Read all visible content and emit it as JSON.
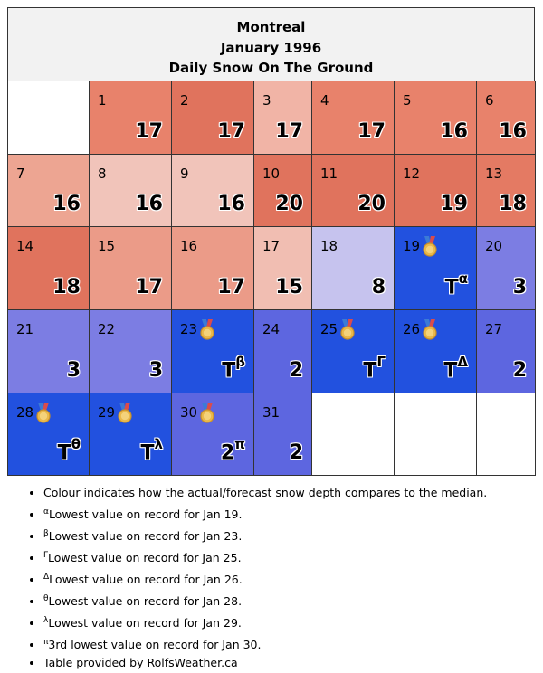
{
  "header": {
    "city": "Montreal",
    "period": "January 1996",
    "subtitle": "Daily Snow On The Ground"
  },
  "colors": {
    "above_median_dark": "#e07a63",
    "above_median": "#e88a72",
    "above_median_light": "#efa893",
    "above_median_lighter": "#f1bcb0",
    "near_median_low": "#c6c3ee",
    "below_median": "#7c7de3",
    "below_median_dark": "#5d66e0",
    "record_low": "#2251df",
    "empty": "#ffffff"
  },
  "icons": {
    "record": "medal-icon"
  },
  "calendar": {
    "weeks": [
      [
        {
          "day": "",
          "value": "",
          "sup": "",
          "color": "#ffffff",
          "medal": false
        },
        {
          "day": "1",
          "value": "17",
          "sup": "",
          "color": "#e8826b",
          "medal": false
        },
        {
          "day": "2",
          "value": "17",
          "sup": "",
          "color": "#e0735d",
          "medal": false
        },
        {
          "day": "3",
          "value": "17",
          "sup": "",
          "color": "#f1b4a6",
          "medal": false
        },
        {
          "day": "4",
          "value": "17",
          "sup": "",
          "color": "#e8826b",
          "medal": false
        },
        {
          "day": "5",
          "value": "16",
          "sup": "",
          "color": "#e8826b",
          "medal": false
        },
        {
          "day": "6",
          "value": "16",
          "sup": "",
          "color": "#e8826b",
          "medal": false
        }
      ],
      [
        {
          "day": "7",
          "value": "16",
          "sup": "",
          "color": "#eda592",
          "medal": false
        },
        {
          "day": "8",
          "value": "16",
          "sup": "",
          "color": "#f1c4ba",
          "medal": false
        },
        {
          "day": "9",
          "value": "16",
          "sup": "",
          "color": "#f1c4ba",
          "medal": false
        },
        {
          "day": "10",
          "value": "20",
          "sup": "",
          "color": "#e0735d",
          "medal": false
        },
        {
          "day": "11",
          "value": "20",
          "sup": "",
          "color": "#e0735d",
          "medal": false
        },
        {
          "day": "12",
          "value": "19",
          "sup": "",
          "color": "#e0735d",
          "medal": false
        },
        {
          "day": "13",
          "value": "18",
          "sup": "",
          "color": "#e47a63",
          "medal": false
        }
      ],
      [
        {
          "day": "14",
          "value": "18",
          "sup": "",
          "color": "#e0735d",
          "medal": false
        },
        {
          "day": "15",
          "value": "17",
          "sup": "",
          "color": "#eb9b88",
          "medal": false
        },
        {
          "day": "16",
          "value": "17",
          "sup": "",
          "color": "#eb9b88",
          "medal": false
        },
        {
          "day": "17",
          "value": "15",
          "sup": "",
          "color": "#f1beb2",
          "medal": false
        },
        {
          "day": "18",
          "value": "8",
          "sup": "",
          "color": "#c6c3ee",
          "medal": false
        },
        {
          "day": "19",
          "value": "T",
          "sup": "α",
          "color": "#2251df",
          "medal": true
        },
        {
          "day": "20",
          "value": "3",
          "sup": "",
          "color": "#7c7de3",
          "medal": false
        }
      ],
      [
        {
          "day": "21",
          "value": "3",
          "sup": "",
          "color": "#7c7de3",
          "medal": false
        },
        {
          "day": "22",
          "value": "3",
          "sup": "",
          "color": "#7c7de3",
          "medal": false
        },
        {
          "day": "23",
          "value": "T",
          "sup": "β",
          "color": "#2251df",
          "medal": true
        },
        {
          "day": "24",
          "value": "2",
          "sup": "",
          "color": "#5d66e0",
          "medal": false
        },
        {
          "day": "25",
          "value": "T",
          "sup": "Γ",
          "color": "#2251df",
          "medal": true
        },
        {
          "day": "26",
          "value": "T",
          "sup": "Δ",
          "color": "#2251df",
          "medal": true
        },
        {
          "day": "27",
          "value": "2",
          "sup": "",
          "color": "#5d66e0",
          "medal": false
        }
      ],
      [
        {
          "day": "28",
          "value": "T",
          "sup": "θ",
          "color": "#2251df",
          "medal": true
        },
        {
          "day": "29",
          "value": "T",
          "sup": "λ",
          "color": "#2251df",
          "medal": true
        },
        {
          "day": "30",
          "value": "2",
          "sup": "π",
          "color": "#5d66e0",
          "medal": true
        },
        {
          "day": "31",
          "value": "2",
          "sup": "",
          "color": "#5d66e0",
          "medal": false
        },
        {
          "day": "",
          "value": "",
          "sup": "",
          "color": "#ffffff",
          "medal": false
        },
        {
          "day": "",
          "value": "",
          "sup": "",
          "color": "#ffffff",
          "medal": false
        },
        {
          "day": "",
          "value": "",
          "sup": "",
          "color": "#ffffff",
          "medal": false
        }
      ]
    ]
  },
  "notes": [
    {
      "sup": "",
      "text": "Colour indicates how the actual/forecast snow depth compares to the median."
    },
    {
      "sup": "α",
      "text": "Lowest value on record for Jan 19."
    },
    {
      "sup": "β",
      "text": "Lowest value on record for Jan 23."
    },
    {
      "sup": "Γ",
      "text": "Lowest value on record for Jan 25."
    },
    {
      "sup": "Δ",
      "text": "Lowest value on record for Jan 26."
    },
    {
      "sup": "θ",
      "text": "Lowest value on record for Jan 28."
    },
    {
      "sup": "λ",
      "text": "Lowest value on record for Jan 29."
    },
    {
      "sup": "π",
      "text": "3rd lowest value on record for Jan 30."
    },
    {
      "sup": "",
      "text": "Table provided by RolfsWeather.ca"
    }
  ]
}
